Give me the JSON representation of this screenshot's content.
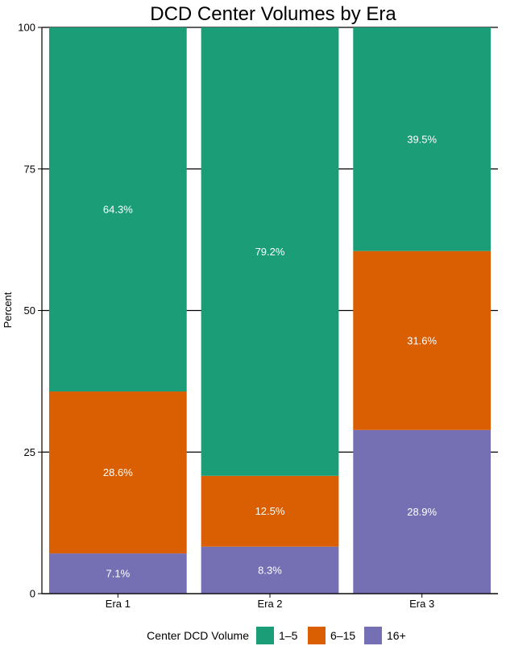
{
  "chart_data": {
    "type": "bar",
    "stacked": true,
    "title": "DCD Center Volumes by Era",
    "xlabel": "",
    "ylabel": "Percent",
    "ylim": [
      0,
      100
    ],
    "yticks": [
      "0",
      "25",
      "50",
      "75",
      "100"
    ],
    "categories": [
      "Era 1",
      "Era 2",
      "Era 3"
    ],
    "legend": {
      "title": "Center DCD Volume",
      "position": "bottom"
    },
    "series": [
      {
        "name": "16+",
        "color": "#7570B3",
        "values": [
          7.1,
          8.3,
          28.9
        ],
        "labels": [
          "7.1%",
          "8.3%",
          "28.9%"
        ]
      },
      {
        "name": "6–15",
        "color": "#D95F02",
        "values": [
          28.6,
          12.5,
          31.6
        ],
        "labels": [
          "28.6%",
          "12.5%",
          "31.6%"
        ]
      },
      {
        "name": "1–5",
        "color": "#1B9E77",
        "values": [
          64.3,
          79.2,
          39.5
        ],
        "labels": [
          "64.3%",
          "79.2%",
          "39.5%"
        ]
      }
    ],
    "legend_order": [
      "1–5",
      "6–15",
      "16+"
    ],
    "grid": true
  }
}
